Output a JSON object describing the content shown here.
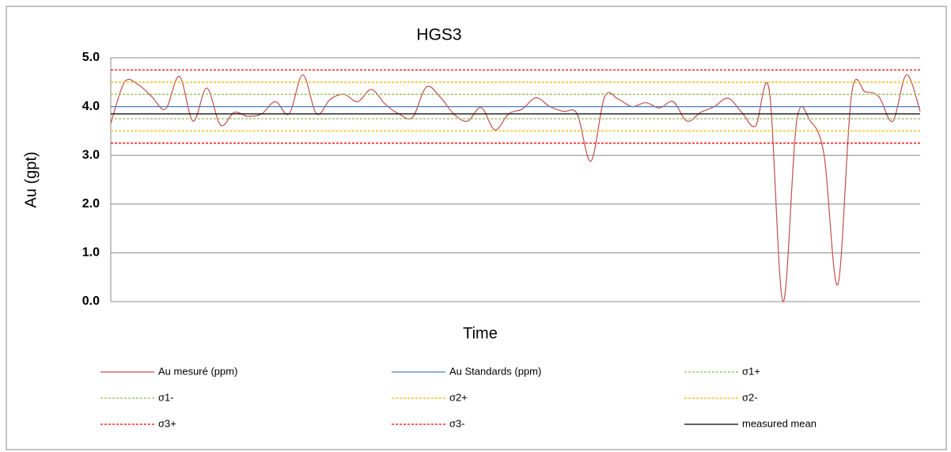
{
  "chart_data": {
    "type": "line",
    "title": "HGS3",
    "ylabel": "Au (gpt)",
    "xlabel": "Time",
    "ylim": [
      0,
      5
    ],
    "yticks": [
      {
        "value": 0,
        "label": "0.0"
      },
      {
        "value": 1,
        "label": "1.0"
      },
      {
        "value": 2,
        "label": "2.0"
      },
      {
        "value": 3,
        "label": "3.0"
      },
      {
        "value": 4,
        "label": "4.0"
      },
      {
        "value": 5,
        "label": "5.0"
      }
    ],
    "grid": true,
    "smooth": true,
    "series": [
      {
        "name": "Au mesuré (ppm)",
        "color": "#c0504d",
        "dash": false,
        "values": [
          3.65,
          4.5,
          4.45,
          4.2,
          3.95,
          4.62,
          3.7,
          4.38,
          3.62,
          3.88,
          3.8,
          3.85,
          4.1,
          3.85,
          4.65,
          3.85,
          4.15,
          4.25,
          4.1,
          4.35,
          4.05,
          3.85,
          3.78,
          4.4,
          4.2,
          3.85,
          3.7,
          3.98,
          3.52,
          3.85,
          3.95,
          4.18,
          4.0,
          3.9,
          3.85,
          2.88,
          4.2,
          4.15,
          4.0,
          4.08,
          3.97,
          4.1,
          3.7,
          3.88,
          4.0,
          4.17,
          3.88,
          3.6,
          4.33,
          0.0,
          3.7,
          3.7,
          3.0,
          0.35,
          4.25,
          4.3,
          4.2,
          3.7,
          4.65,
          3.9
        ]
      },
      {
        "name": "Au Standards (ppm)",
        "color": "#4f81bd",
        "dash": false,
        "value": 4.0
      },
      {
        "name": "σ1+",
        "color": "#9bbb59",
        "dash": true,
        "value": 4.25
      },
      {
        "name": "σ1-",
        "color": "#9bbb59",
        "dash": true,
        "value": 3.75
      },
      {
        "name": "σ2+",
        "color": "#f5b800",
        "dash": true,
        "value": 4.5
      },
      {
        "name": "σ2-",
        "color": "#f5b800",
        "dash": true,
        "value": 3.5
      },
      {
        "name": "σ3+",
        "color": "#ff0000",
        "dash": true,
        "value": 4.75
      },
      {
        "name": "σ3-",
        "color": "#ff0000",
        "dash": true,
        "value": 3.25
      },
      {
        "name": "measured mean",
        "color": "#000000",
        "dash": false,
        "value": 3.85
      }
    ]
  }
}
